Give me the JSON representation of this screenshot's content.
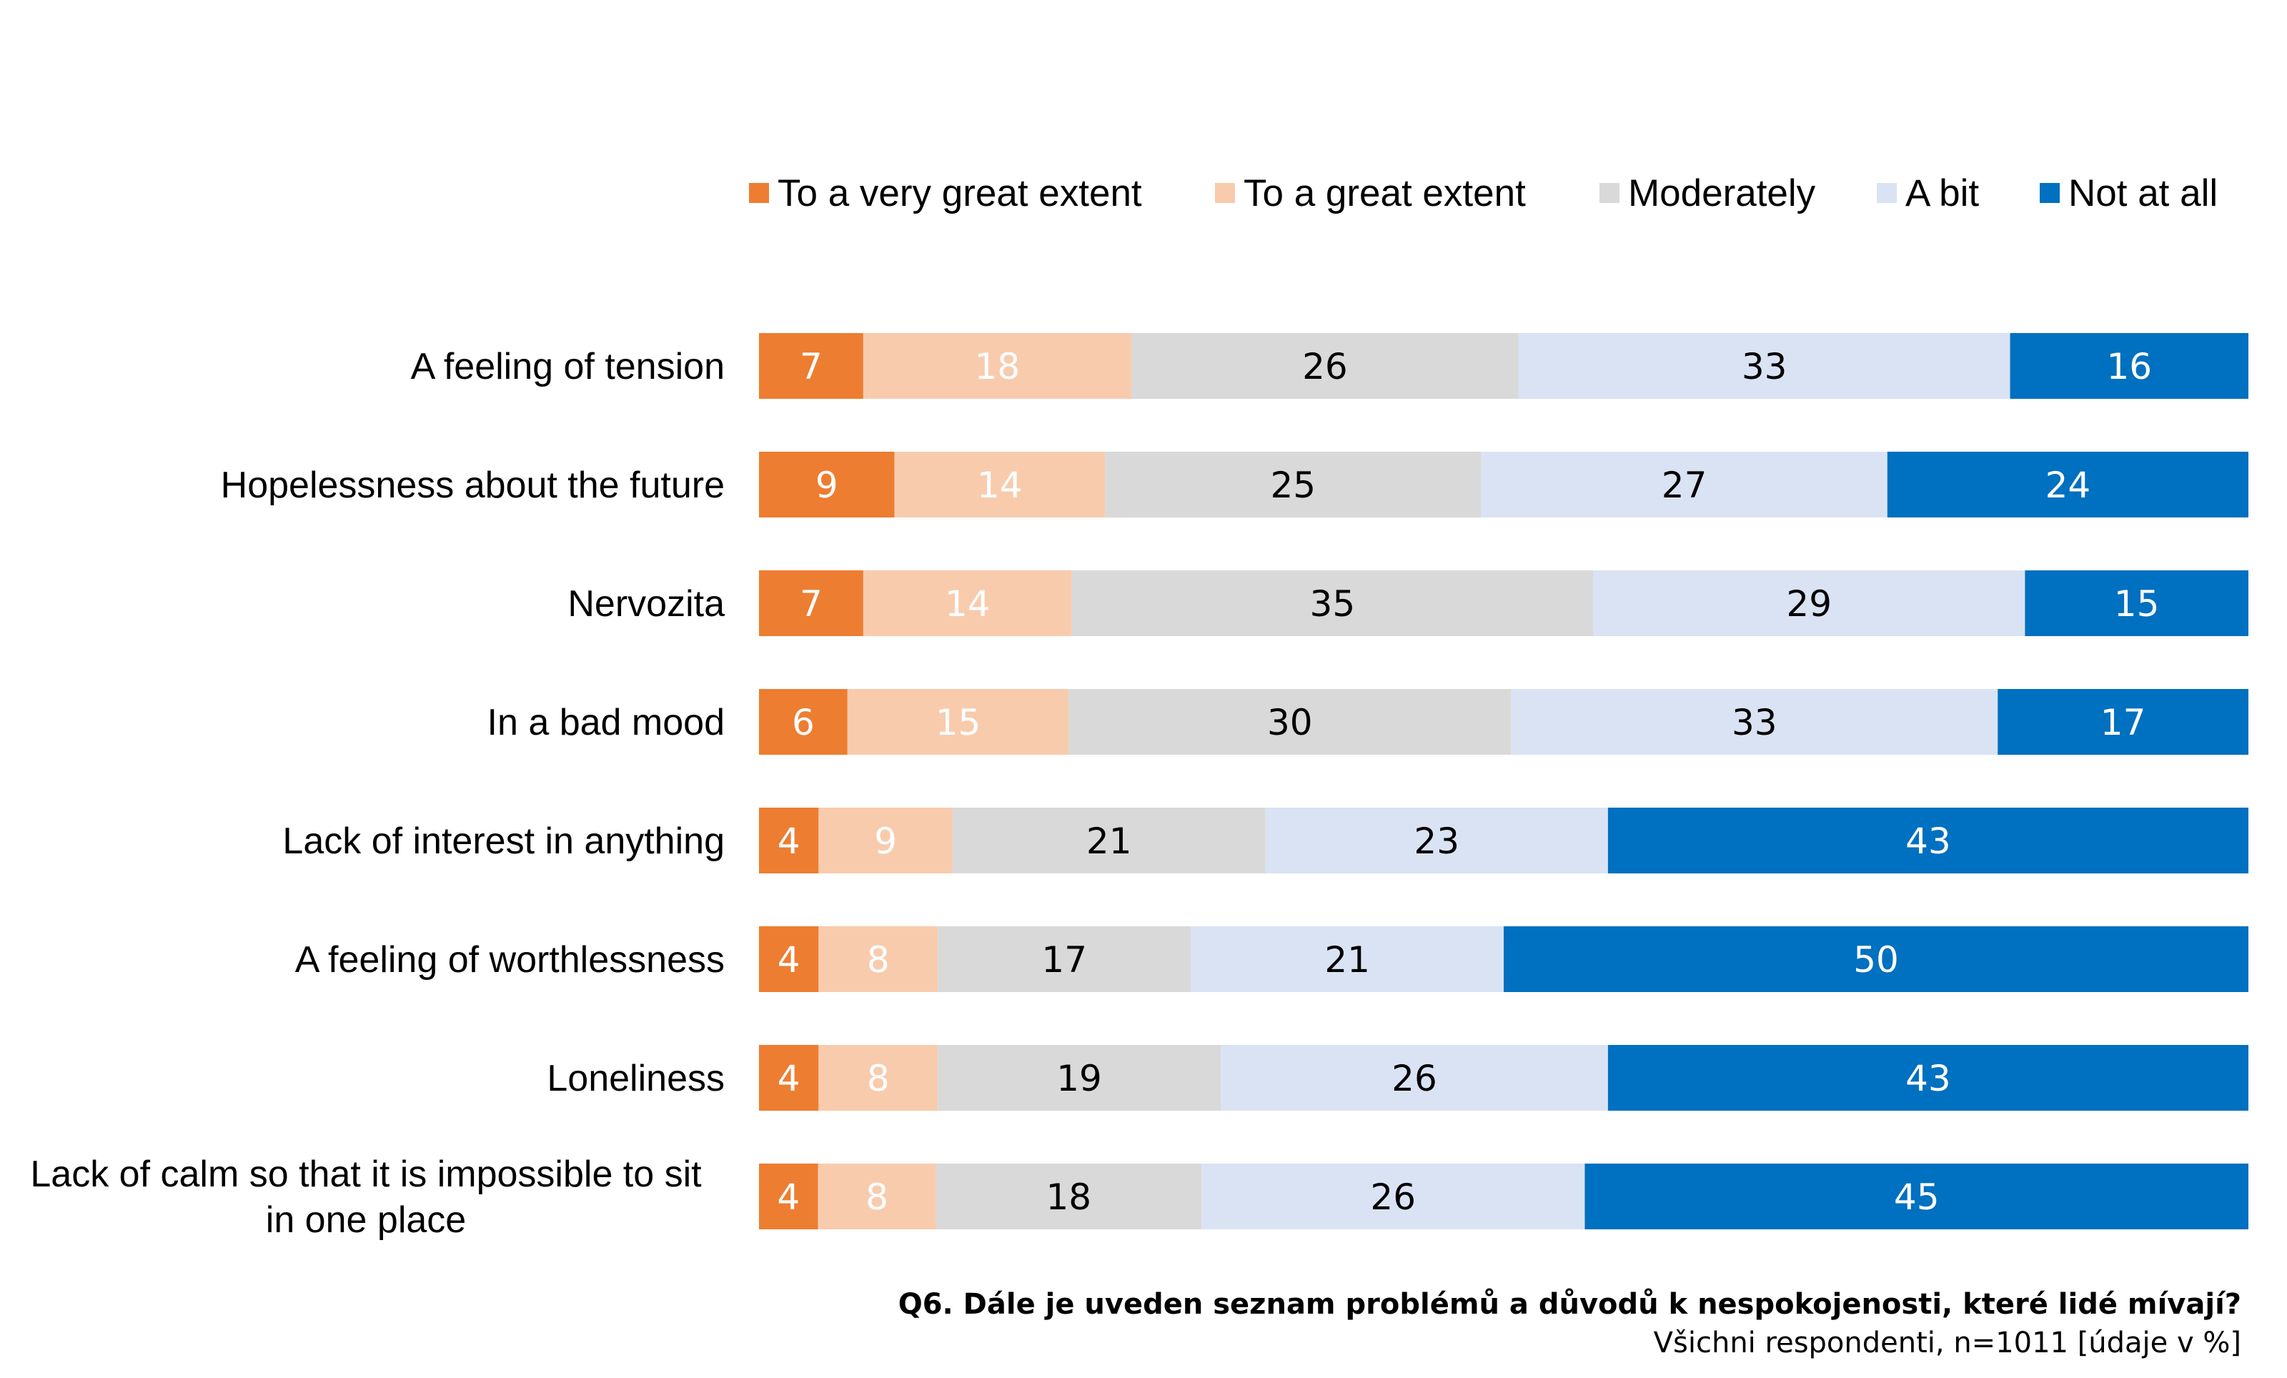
{
  "chart_data": {
    "type": "bar",
    "orientation": "horizontal",
    "stacked": true,
    "legend_position": "top-right",
    "grid": false,
    "categories": [
      "A feeling of tension",
      "Hopelessness about the future",
      "Nervozita",
      "In a bad mood",
      "Lack of interest in anything",
      "A feeling of worthlessness",
      "Loneliness",
      "Lack of calm so that it is impossible to sit in one place"
    ],
    "category_lines": [
      [
        "A feeling of tension"
      ],
      [
        "Hopelessness about the future"
      ],
      [
        "Nervozita"
      ],
      [
        "In a bad mood"
      ],
      [
        "Lack of interest in anything"
      ],
      [
        "A feeling of worthlessness"
      ],
      [
        "Loneliness"
      ],
      [
        "Lack of calm so that it is impossible to sit",
        "in one place"
      ]
    ],
    "series": [
      {
        "name": "To a very great extent",
        "color": "#ED7D31",
        "label_color": "#ffffff",
        "values": [
          7,
          9,
          7,
          6,
          4,
          4,
          4,
          4
        ]
      },
      {
        "name": "To a great extent",
        "color": "#F8CBAD",
        "label_color": "#ffffff",
        "values": [
          18,
          14,
          14,
          15,
          9,
          8,
          8,
          8
        ]
      },
      {
        "name": "Moderately",
        "color": "#D9D9D9",
        "label_color": "#000000",
        "values": [
          26,
          25,
          35,
          30,
          21,
          17,
          19,
          18
        ]
      },
      {
        "name": "A bit",
        "color": "#DAE3F3",
        "label_color": "#000000",
        "values": [
          33,
          27,
          29,
          33,
          23,
          21,
          26,
          26
        ]
      },
      {
        "name": "Not at all",
        "color": "#0070C0",
        "label_color": "#ffffff",
        "values": [
          16,
          24,
          15,
          17,
          43,
          50,
          43,
          45
        ]
      }
    ],
    "footnote_title": "Q6. Dále je uveden seznam problémů a důvodů k nespokojenosti, které lidé mívají?",
    "footnote_subtitle": "Všichni respondenti, n=1011 [údaje v %]"
  }
}
